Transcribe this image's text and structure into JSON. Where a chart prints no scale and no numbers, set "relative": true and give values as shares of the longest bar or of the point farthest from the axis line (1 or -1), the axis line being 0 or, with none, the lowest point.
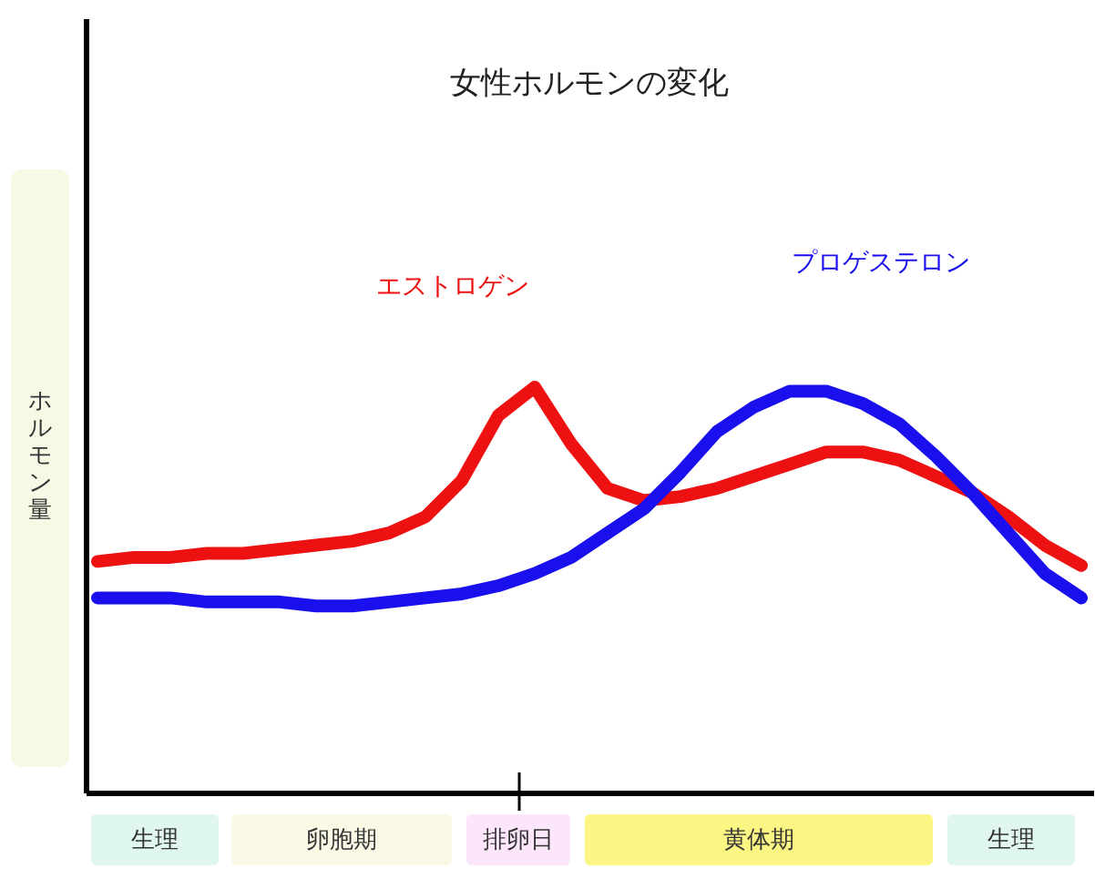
{
  "chart_data": {
    "type": "line",
    "title": "女性ホルモンの変化",
    "ylabel": "ホルモン量",
    "relative": true,
    "legend": false,
    "line_style": "solid",
    "categories": [
      null,
      null,
      null,
      null,
      null,
      null,
      null,
      null,
      null,
      null,
      null,
      null,
      null,
      null,
      null,
      null,
      null,
      null,
      null,
      null,
      null,
      null,
      null,
      null,
      null,
      null,
      null,
      null
    ],
    "series": [
      {
        "name": "エストロゲン",
        "color": "#ee1111",
        "values": [
          0.57,
          0.58,
          0.58,
          0.59,
          0.59,
          0.6,
          0.61,
          0.62,
          0.64,
          0.68,
          0.77,
          0.93,
          1,
          0.86,
          0.75,
          0.72,
          0.73,
          0.75,
          0.78,
          0.81,
          0.84,
          0.84,
          0.82,
          0.78,
          0.74,
          0.68,
          0.61,
          0.56
        ]
      },
      {
        "name": "プロゲステロン",
        "color": "#1a10ee",
        "values": [
          0.48,
          0.48,
          0.48,
          0.47,
          0.47,
          0.47,
          0.46,
          0.46,
          0.47,
          0.48,
          0.49,
          0.51,
          0.54,
          0.58,
          0.64,
          0.7,
          0.79,
          0.89,
          0.95,
          0.99,
          0.99,
          0.96,
          0.91,
          0.83,
          0.74,
          0.64,
          0.54,
          0.48
        ]
      }
    ],
    "annotations": [
      "生理",
      "卵胞期",
      "排卵日",
      "黄体期",
      "生理"
    ]
  }
}
